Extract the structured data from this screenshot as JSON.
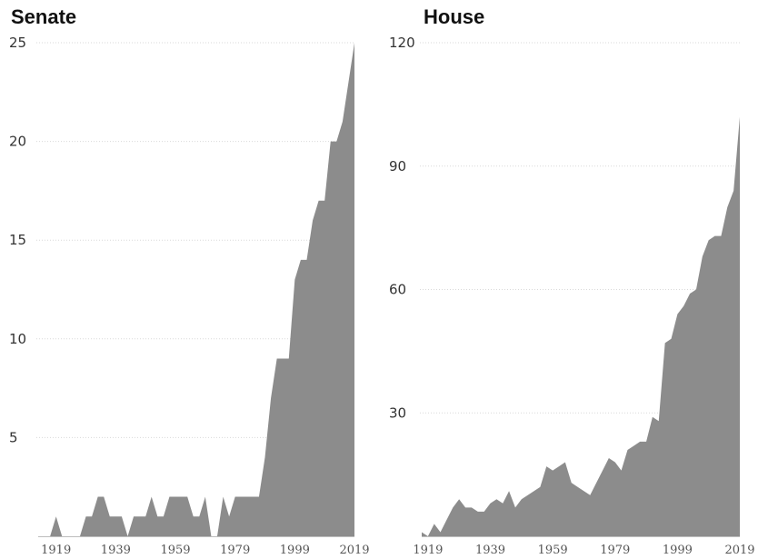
{
  "chart_data": [
    {
      "type": "area",
      "title": "Senate",
      "color": "#8c8c8c",
      "ylim": [
        0,
        25
      ],
      "yticks": [
        5,
        10,
        15,
        20,
        25
      ],
      "xlim": [
        1913,
        2019
      ],
      "xticks": [
        "1919",
        "1939",
        "1959",
        "1979",
        "1999",
        "2019"
      ],
      "grid": true,
      "x": [
        1913,
        1917,
        1919,
        1921,
        1923,
        1925,
        1927,
        1929,
        1931,
        1933,
        1935,
        1937,
        1939,
        1941,
        1943,
        1945,
        1947,
        1949,
        1951,
        1953,
        1955,
        1957,
        1959,
        1961,
        1963,
        1965,
        1967,
        1969,
        1971,
        1973,
        1975,
        1977,
        1979,
        1981,
        1983,
        1985,
        1987,
        1989,
        1991,
        1993,
        1995,
        1997,
        1999,
        2001,
        2003,
        2005,
        2007,
        2009,
        2011,
        2013,
        2015,
        2017,
        2019
      ],
      "values": [
        0,
        0,
        1,
        0,
        0,
        0,
        0,
        1,
        1,
        2,
        2,
        1,
        1,
        1,
        0,
        1,
        1,
        1,
        2,
        1,
        1,
        2,
        2,
        2,
        2,
        1,
        1,
        2,
        0,
        0,
        2,
        1,
        2,
        2,
        2,
        2,
        2,
        4,
        7,
        9,
        9,
        9,
        13,
        14,
        14,
        16,
        17,
        17,
        20,
        20,
        21,
        23,
        25
      ]
    },
    {
      "type": "area",
      "title": "House",
      "color": "#8c8c8c",
      "ylim": [
        0,
        120
      ],
      "yticks": [
        30,
        60,
        90,
        120
      ],
      "xlim": [
        1917,
        2019
      ],
      "xticks": [
        "1919",
        "1939",
        "1959",
        "1979",
        "1999",
        "2019"
      ],
      "grid": true,
      "x": [
        1917,
        1919,
        1921,
        1923,
        1925,
        1927,
        1929,
        1931,
        1933,
        1935,
        1937,
        1939,
        1941,
        1943,
        1945,
        1947,
        1949,
        1951,
        1953,
        1955,
        1957,
        1959,
        1961,
        1963,
        1965,
        1967,
        1969,
        1971,
        1973,
        1975,
        1977,
        1979,
        1981,
        1983,
        1985,
        1987,
        1989,
        1991,
        1993,
        1995,
        1997,
        1999,
        2001,
        2003,
        2005,
        2007,
        2009,
        2011,
        2013,
        2015,
        2017,
        2019
      ],
      "values": [
        1,
        0,
        3,
        1,
        4,
        7,
        9,
        7,
        7,
        6,
        6,
        8,
        9,
        8,
        11,
        7,
        9,
        10,
        11,
        12,
        17,
        16,
        17,
        18,
        13,
        12,
        11,
        10,
        13,
        16,
        19,
        18,
        16,
        21,
        22,
        23,
        23,
        29,
        28,
        47,
        48,
        54,
        56,
        59,
        60,
        68,
        72,
        73,
        73,
        80,
        84,
        102
      ]
    }
  ]
}
